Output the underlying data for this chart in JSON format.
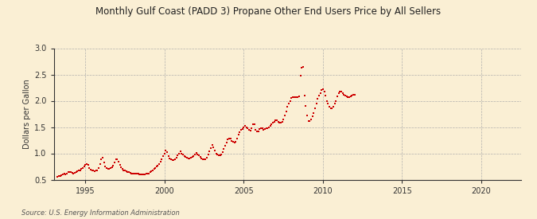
{
  "title": "Monthly Gulf Coast (PADD 3) Propane Other End Users Price by All Sellers",
  "ylabel": "Dollars per Gallon",
  "source": "Source: U.S. Energy Information Administration",
  "background_color": "#faefd4",
  "line_color": "#cc0000",
  "marker": "s",
  "markersize": 2.0,
  "xlim_left": 1993.0,
  "xlim_right": 2022.5,
  "ylim_bottom": 0.5,
  "ylim_top": 3.0,
  "xticks": [
    1995,
    2000,
    2005,
    2010,
    2015,
    2020
  ],
  "yticks": [
    0.5,
    1.0,
    1.5,
    2.0,
    2.5,
    3.0
  ],
  "data": [
    [
      1993.25,
      0.56
    ],
    [
      1993.33,
      0.57
    ],
    [
      1993.42,
      0.57
    ],
    [
      1993.5,
      0.58
    ],
    [
      1993.58,
      0.6
    ],
    [
      1993.67,
      0.61
    ],
    [
      1993.75,
      0.6
    ],
    [
      1993.83,
      0.62
    ],
    [
      1993.92,
      0.64
    ],
    [
      1994.0,
      0.65
    ],
    [
      1994.08,
      0.64
    ],
    [
      1994.17,
      0.63
    ],
    [
      1994.25,
      0.62
    ],
    [
      1994.33,
      0.63
    ],
    [
      1994.42,
      0.64
    ],
    [
      1994.5,
      0.66
    ],
    [
      1994.58,
      0.67
    ],
    [
      1994.67,
      0.68
    ],
    [
      1994.75,
      0.7
    ],
    [
      1994.83,
      0.72
    ],
    [
      1994.92,
      0.75
    ],
    [
      1995.0,
      0.78
    ],
    [
      1995.08,
      0.79
    ],
    [
      1995.17,
      0.78
    ],
    [
      1995.25,
      0.72
    ],
    [
      1995.33,
      0.69
    ],
    [
      1995.42,
      0.68
    ],
    [
      1995.5,
      0.67
    ],
    [
      1995.58,
      0.66
    ],
    [
      1995.67,
      0.67
    ],
    [
      1995.75,
      0.68
    ],
    [
      1995.83,
      0.72
    ],
    [
      1995.92,
      0.8
    ],
    [
      1996.0,
      0.88
    ],
    [
      1996.08,
      0.92
    ],
    [
      1996.17,
      0.82
    ],
    [
      1996.25,
      0.75
    ],
    [
      1996.33,
      0.72
    ],
    [
      1996.42,
      0.71
    ],
    [
      1996.5,
      0.71
    ],
    [
      1996.58,
      0.72
    ],
    [
      1996.67,
      0.74
    ],
    [
      1996.75,
      0.77
    ],
    [
      1996.83,
      0.82
    ],
    [
      1996.92,
      0.88
    ],
    [
      1997.0,
      0.88
    ],
    [
      1997.08,
      0.84
    ],
    [
      1997.17,
      0.78
    ],
    [
      1997.25,
      0.73
    ],
    [
      1997.33,
      0.7
    ],
    [
      1997.42,
      0.68
    ],
    [
      1997.5,
      0.67
    ],
    [
      1997.58,
      0.66
    ],
    [
      1997.67,
      0.65
    ],
    [
      1997.75,
      0.64
    ],
    [
      1997.83,
      0.63
    ],
    [
      1997.92,
      0.62
    ],
    [
      1998.0,
      0.62
    ],
    [
      1998.08,
      0.61
    ],
    [
      1998.17,
      0.61
    ],
    [
      1998.25,
      0.61
    ],
    [
      1998.33,
      0.61
    ],
    [
      1998.42,
      0.6
    ],
    [
      1998.5,
      0.6
    ],
    [
      1998.58,
      0.6
    ],
    [
      1998.67,
      0.6
    ],
    [
      1998.75,
      0.6
    ],
    [
      1998.83,
      0.61
    ],
    [
      1998.92,
      0.61
    ],
    [
      1999.0,
      0.62
    ],
    [
      1999.08,
      0.64
    ],
    [
      1999.17,
      0.66
    ],
    [
      1999.25,
      0.68
    ],
    [
      1999.33,
      0.7
    ],
    [
      1999.42,
      0.72
    ],
    [
      1999.5,
      0.75
    ],
    [
      1999.58,
      0.77
    ],
    [
      1999.67,
      0.8
    ],
    [
      1999.75,
      0.84
    ],
    [
      1999.83,
      0.88
    ],
    [
      1999.92,
      0.94
    ],
    [
      2000.0,
      1.0
    ],
    [
      2000.08,
      1.05
    ],
    [
      2000.17,
      1.03
    ],
    [
      2000.25,
      0.95
    ],
    [
      2000.33,
      0.9
    ],
    [
      2000.42,
      0.88
    ],
    [
      2000.5,
      0.87
    ],
    [
      2000.58,
      0.87
    ],
    [
      2000.67,
      0.88
    ],
    [
      2000.75,
      0.92
    ],
    [
      2000.83,
      0.96
    ],
    [
      2000.92,
      1.0
    ],
    [
      2001.0,
      1.04
    ],
    [
      2001.08,
      1.0
    ],
    [
      2001.17,
      0.97
    ],
    [
      2001.25,
      0.95
    ],
    [
      2001.33,
      0.93
    ],
    [
      2001.42,
      0.91
    ],
    [
      2001.5,
      0.9
    ],
    [
      2001.58,
      0.9
    ],
    [
      2001.67,
      0.91
    ],
    [
      2001.75,
      0.93
    ],
    [
      2001.83,
      0.95
    ],
    [
      2001.92,
      0.98
    ],
    [
      2002.0,
      1.01
    ],
    [
      2002.08,
      0.98
    ],
    [
      2002.17,
      0.96
    ],
    [
      2002.25,
      0.93
    ],
    [
      2002.33,
      0.9
    ],
    [
      2002.42,
      0.89
    ],
    [
      2002.5,
      0.88
    ],
    [
      2002.58,
      0.89
    ],
    [
      2002.67,
      0.91
    ],
    [
      2002.75,
      0.97
    ],
    [
      2002.83,
      1.04
    ],
    [
      2002.92,
      1.1
    ],
    [
      2003.0,
      1.16
    ],
    [
      2003.08,
      1.12
    ],
    [
      2003.17,
      1.06
    ],
    [
      2003.25,
      1.0
    ],
    [
      2003.33,
      0.97
    ],
    [
      2003.42,
      0.96
    ],
    [
      2003.5,
      0.96
    ],
    [
      2003.58,
      0.98
    ],
    [
      2003.67,
      1.02
    ],
    [
      2003.75,
      1.08
    ],
    [
      2003.83,
      1.14
    ],
    [
      2003.92,
      1.2
    ],
    [
      2004.0,
      1.26
    ],
    [
      2004.08,
      1.28
    ],
    [
      2004.17,
      1.28
    ],
    [
      2004.25,
      1.24
    ],
    [
      2004.33,
      1.22
    ],
    [
      2004.42,
      1.2
    ],
    [
      2004.5,
      1.22
    ],
    [
      2004.58,
      1.28
    ],
    [
      2004.67,
      1.35
    ],
    [
      2004.75,
      1.4
    ],
    [
      2004.83,
      1.44
    ],
    [
      2004.92,
      1.46
    ],
    [
      2005.0,
      1.5
    ],
    [
      2005.08,
      1.53
    ],
    [
      2005.17,
      1.5
    ],
    [
      2005.25,
      1.47
    ],
    [
      2005.33,
      1.44
    ],
    [
      2005.42,
      1.43
    ],
    [
      2005.5,
      1.48
    ],
    [
      2005.58,
      1.55
    ],
    [
      2005.67,
      1.55
    ],
    [
      2005.75,
      1.45
    ],
    [
      2005.83,
      1.42
    ],
    [
      2005.92,
      1.42
    ],
    [
      2006.0,
      1.46
    ],
    [
      2006.08,
      1.47
    ],
    [
      2006.17,
      1.47
    ],
    [
      2006.25,
      1.45
    ],
    [
      2006.33,
      1.46
    ],
    [
      2006.42,
      1.47
    ],
    [
      2006.5,
      1.48
    ],
    [
      2006.58,
      1.5
    ],
    [
      2006.67,
      1.52
    ],
    [
      2006.75,
      1.55
    ],
    [
      2006.83,
      1.58
    ],
    [
      2006.92,
      1.6
    ],
    [
      2007.0,
      1.63
    ],
    [
      2007.08,
      1.63
    ],
    [
      2007.17,
      1.6
    ],
    [
      2007.25,
      1.58
    ],
    [
      2007.33,
      1.58
    ],
    [
      2007.42,
      1.6
    ],
    [
      2007.5,
      1.64
    ],
    [
      2007.58,
      1.72
    ],
    [
      2007.67,
      1.8
    ],
    [
      2007.75,
      1.88
    ],
    [
      2007.83,
      1.95
    ],
    [
      2007.92,
      2.0
    ],
    [
      2008.0,
      2.05
    ],
    [
      2008.08,
      2.07
    ],
    [
      2008.17,
      2.07
    ],
    [
      2008.25,
      2.07
    ],
    [
      2008.33,
      2.07
    ],
    [
      2008.42,
      2.07
    ],
    [
      2008.5,
      2.09
    ],
    [
      2008.58,
      2.48
    ],
    [
      2008.67,
      2.63
    ],
    [
      2008.75,
      2.65
    ],
    [
      2008.83,
      2.1
    ],
    [
      2008.92,
      1.9
    ],
    [
      2009.0,
      1.72
    ],
    [
      2009.08,
      1.62
    ],
    [
      2009.17,
      1.62
    ],
    [
      2009.25,
      1.65
    ],
    [
      2009.33,
      1.7
    ],
    [
      2009.42,
      1.76
    ],
    [
      2009.5,
      1.85
    ],
    [
      2009.58,
      1.95
    ],
    [
      2009.67,
      2.04
    ],
    [
      2009.75,
      2.1
    ],
    [
      2009.83,
      2.15
    ],
    [
      2009.92,
      2.2
    ],
    [
      2010.0,
      2.22
    ],
    [
      2010.08,
      2.18
    ],
    [
      2010.17,
      2.1
    ],
    [
      2010.25,
      2.0
    ],
    [
      2010.33,
      1.94
    ],
    [
      2010.42,
      1.88
    ],
    [
      2010.5,
      1.85
    ],
    [
      2010.58,
      1.85
    ],
    [
      2010.67,
      1.88
    ],
    [
      2010.75,
      1.95
    ],
    [
      2010.83,
      2.0
    ],
    [
      2010.92,
      2.08
    ],
    [
      2011.0,
      2.15
    ],
    [
      2011.08,
      2.18
    ],
    [
      2011.17,
      2.18
    ],
    [
      2011.25,
      2.15
    ],
    [
      2011.33,
      2.12
    ],
    [
      2011.42,
      2.1
    ],
    [
      2011.5,
      2.08
    ],
    [
      2011.58,
      2.07
    ],
    [
      2011.67,
      2.07
    ],
    [
      2011.75,
      2.08
    ],
    [
      2011.83,
      2.1
    ],
    [
      2011.92,
      2.12
    ],
    [
      2012.0,
      2.12
    ]
  ]
}
